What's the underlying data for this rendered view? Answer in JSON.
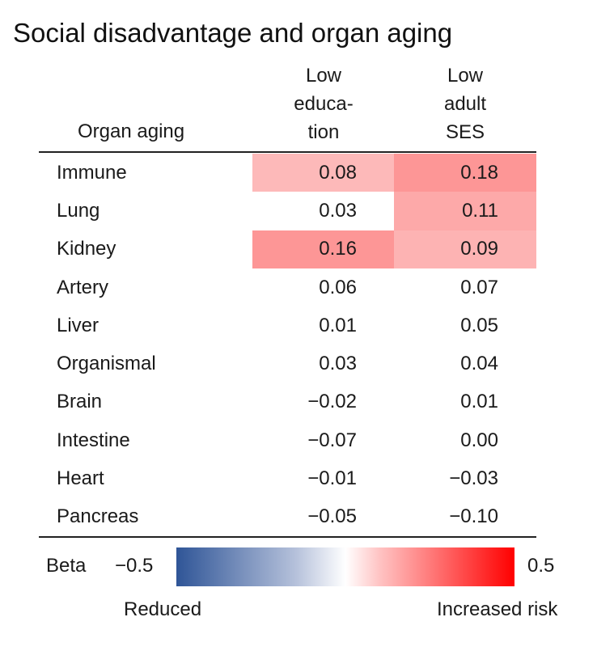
{
  "chart_data": {
    "type": "heatmap",
    "title": "Social disadvantage and organ aging",
    "row_header": "Organ aging",
    "columns": [
      {
        "label_lines": [
          "Low",
          "educa-",
          "tion"
        ],
        "label": "Low education"
      },
      {
        "label_lines": [
          "Low",
          "adult",
          "SES"
        ],
        "label": "Low adult SES"
      }
    ],
    "rows": [
      {
        "organ": "Immune",
        "values": [
          "0.08",
          "0.18"
        ],
        "highlighted": [
          true,
          true
        ]
      },
      {
        "organ": "Lung",
        "values": [
          "0.03",
          "0.11"
        ],
        "highlighted": [
          false,
          true
        ]
      },
      {
        "organ": "Kidney",
        "values": [
          "0.16",
          "0.09"
        ],
        "highlighted": [
          true,
          true
        ]
      },
      {
        "organ": "Artery",
        "values": [
          "0.06",
          "0.07"
        ],
        "highlighted": [
          false,
          false
        ]
      },
      {
        "organ": "Liver",
        "values": [
          "0.01",
          "0.05"
        ],
        "highlighted": [
          false,
          false
        ]
      },
      {
        "organ": "Organismal",
        "values": [
          "0.03",
          "0.04"
        ],
        "highlighted": [
          false,
          false
        ]
      },
      {
        "organ": "Brain",
        "values": [
          "−0.02",
          "0.01"
        ],
        "highlighted": [
          false,
          false
        ]
      },
      {
        "organ": "Intestine",
        "values": [
          "−0.07",
          "0.00"
        ],
        "highlighted": [
          false,
          false
        ]
      },
      {
        "organ": "Heart",
        "values": [
          "−0.01",
          "−0.03"
        ],
        "highlighted": [
          false,
          false
        ]
      },
      {
        "organ": "Pancreas",
        "values": [
          "−0.05",
          "−0.10"
        ],
        "highlighted": [
          false,
          false
        ]
      }
    ],
    "colorbar": {
      "label": "Beta",
      "min": -0.5,
      "max": 0.5,
      "min_label": "−0.5",
      "max_label": "0.5",
      "low_caption": "Reduced",
      "high_caption": "Increased risk",
      "colors": {
        "low": "#2f5597",
        "mid": "#ffffff",
        "high": "#ff0000"
      }
    }
  }
}
